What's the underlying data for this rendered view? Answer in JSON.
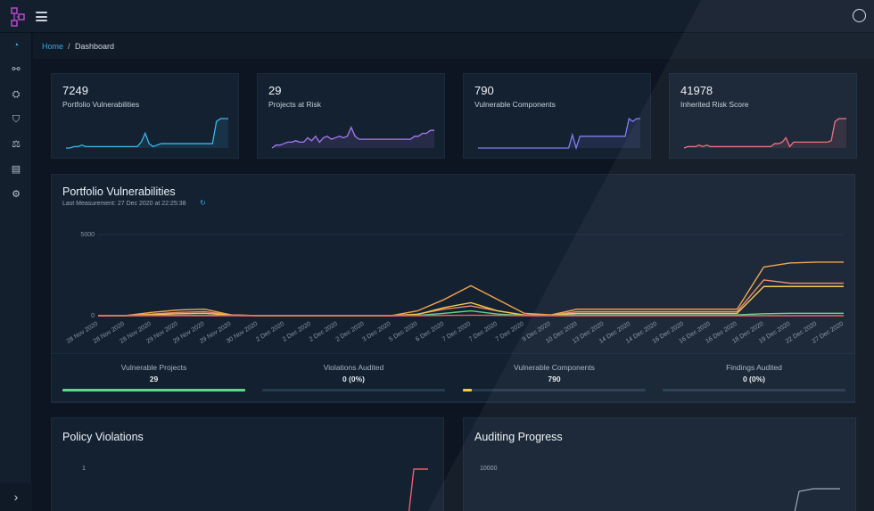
{
  "breadcrumb": {
    "home": "Home",
    "separator": "/",
    "current": "Dashboard"
  },
  "metric_cards": [
    {
      "value": "7249",
      "label": "Portfolio Vulnerabilities",
      "color": "#3ab6e8",
      "spark": [
        0,
        0,
        0.05,
        0.05,
        0.1,
        0.05,
        0.05,
        0.05,
        0.05,
        0.05,
        0.05,
        0.05,
        0.05,
        0.05,
        0.05,
        0.05,
        0.05,
        0.05,
        0.05,
        0.2,
        0.5,
        0.15,
        0.05,
        0.1,
        0.15,
        0.15,
        0.15,
        0.15,
        0.15,
        0.15,
        0.15,
        0.15,
        0.15,
        0.15,
        0.15,
        0.15,
        0.15,
        0.15,
        0.9,
        1,
        1,
        1
      ]
    },
    {
      "value": "29",
      "label": "Projects at Risk",
      "color": "#a978f0",
      "spark": [
        0,
        0.1,
        0.1,
        0.15,
        0.2,
        0.2,
        0.25,
        0.2,
        0.2,
        0.35,
        0.25,
        0.4,
        0.2,
        0.35,
        0.4,
        0.3,
        0.35,
        0.4,
        0.35,
        0.4,
        0.7,
        0.4,
        0.3,
        0.3,
        0.3,
        0.3,
        0.3,
        0.3,
        0.3,
        0.3,
        0.3,
        0.3,
        0.3,
        0.3,
        0.3,
        0.3,
        0.4,
        0.4,
        0.5,
        0.5,
        0.6,
        0.6
      ]
    },
    {
      "value": "790",
      "label": "Vulnerable Components",
      "color": "#7f7ff2",
      "spark": [
        0,
        0,
        0,
        0,
        0,
        0,
        0,
        0,
        0,
        0,
        0,
        0,
        0,
        0,
        0,
        0,
        0,
        0,
        0,
        0,
        0,
        0,
        0,
        0,
        0,
        0.45,
        0,
        0.4,
        0.4,
        0.4,
        0.4,
        0.4,
        0.4,
        0.4,
        0.4,
        0.4,
        0.4,
        0.4,
        0.4,
        0.4,
        1,
        0.9,
        1,
        1
      ]
    },
    {
      "value": "41978",
      "label": "Inherited Risk Score",
      "color": "#f26b7a",
      "spark": [
        0,
        0.05,
        0.05,
        0.05,
        0.1,
        0.05,
        0.1,
        0.05,
        0.05,
        0.05,
        0.05,
        0.05,
        0.05,
        0.05,
        0.05,
        0.05,
        0.05,
        0.05,
        0.05,
        0.05,
        0.05,
        0.05,
        0.05,
        0.05,
        0.15,
        0.15,
        0.2,
        0.35,
        0.05,
        0.2,
        0.2,
        0.2,
        0.2,
        0.2,
        0.2,
        0.2,
        0.2,
        0.2,
        0.2,
        0.25,
        0.9,
        1,
        1,
        1
      ]
    }
  ],
  "portfolio": {
    "title": "Portfolio Vulnerabilities",
    "last_measurement": "Last Measurement: 27 Dec 2020 at 22:25:38"
  },
  "chart_data": {
    "type": "line",
    "ylim": [
      0,
      5000
    ],
    "yticks": [
      0,
      5000
    ],
    "x": [
      "28 Nov 2020",
      "28 Nov 2020",
      "28 Nov 2020",
      "29 Nov 2020",
      "29 Nov 2020",
      "29 Nov 2020",
      "30 Nov 2020",
      "2 Dec 2020",
      "2 Dec 2020",
      "2 Dec 2020",
      "2 Dec 2020",
      "3 Dec 2020",
      "5 Dec 2020",
      "6 Dec 2020",
      "7 Dec 2020",
      "7 Dec 2020",
      "7 Dec 2020",
      "9 Dec 2020",
      "10 Dec 2020",
      "13 Dec 2020",
      "14 Dec 2020",
      "14 Dec 2020",
      "16 Dec 2020",
      "16 Dec 2020",
      "16 Dec 2020",
      "18 Dec 2020",
      "19 Dec 2020",
      "22 Dec 2020",
      "27 Dec 2020"
    ],
    "series": [
      {
        "color": "#f2a34a",
        "values": [
          0,
          0,
          200,
          350,
          400,
          50,
          0,
          0,
          0,
          0,
          0,
          0,
          300,
          1000,
          1850,
          1000,
          150,
          50,
          400,
          400,
          400,
          400,
          400,
          400,
          400,
          3000,
          3250,
          3300,
          3300
        ]
      },
      {
        "color": "#f28a6b",
        "values": [
          0,
          0,
          100,
          200,
          250,
          50,
          0,
          0,
          0,
          0,
          0,
          0,
          100,
          400,
          600,
          300,
          50,
          30,
          250,
          250,
          250,
          250,
          250,
          250,
          250,
          2200,
          2000,
          2000,
          2000
        ]
      },
      {
        "color": "#f2c94a",
        "values": [
          0,
          0,
          60,
          120,
          150,
          30,
          0,
          0,
          0,
          0,
          0,
          0,
          80,
          500,
          800,
          300,
          30,
          20,
          150,
          150,
          150,
          150,
          150,
          150,
          150,
          1800,
          1800,
          1800,
          1800
        ]
      },
      {
        "color": "#5fd68a",
        "values": [
          0,
          0,
          10,
          20,
          20,
          10,
          0,
          0,
          0,
          0,
          0,
          0,
          20,
          150,
          300,
          100,
          10,
          10,
          50,
          50,
          50,
          50,
          50,
          50,
          50,
          120,
          150,
          150,
          150
        ]
      },
      {
        "color": "#ef5b6b",
        "values": [
          0,
          0,
          0,
          0,
          0,
          0,
          0,
          0,
          0,
          0,
          0,
          0,
          0,
          20,
          30,
          20,
          0,
          0,
          0,
          0,
          0,
          0,
          0,
          0,
          0,
          0,
          0,
          0,
          0
        ]
      }
    ]
  },
  "stats": [
    {
      "label": "Vulnerable Projects",
      "value": "29",
      "fill": 1.0,
      "color": "#5fd68a"
    },
    {
      "label": "Violations Audited",
      "value": "0 (0%)",
      "fill": 0.0,
      "color": "#5fd68a"
    },
    {
      "label": "Vulnerable Components",
      "value": "790",
      "fill": 0.05,
      "color": "#f2c94a"
    },
    {
      "label": "Findings Audited",
      "value": "0 (0%)",
      "fill": 0.0,
      "color": "#5fd68a"
    }
  ],
  "policy": {
    "title": "Policy Violations",
    "ytick": "1"
  },
  "auditing": {
    "title": "Auditing Progress",
    "ytick": "10000"
  }
}
